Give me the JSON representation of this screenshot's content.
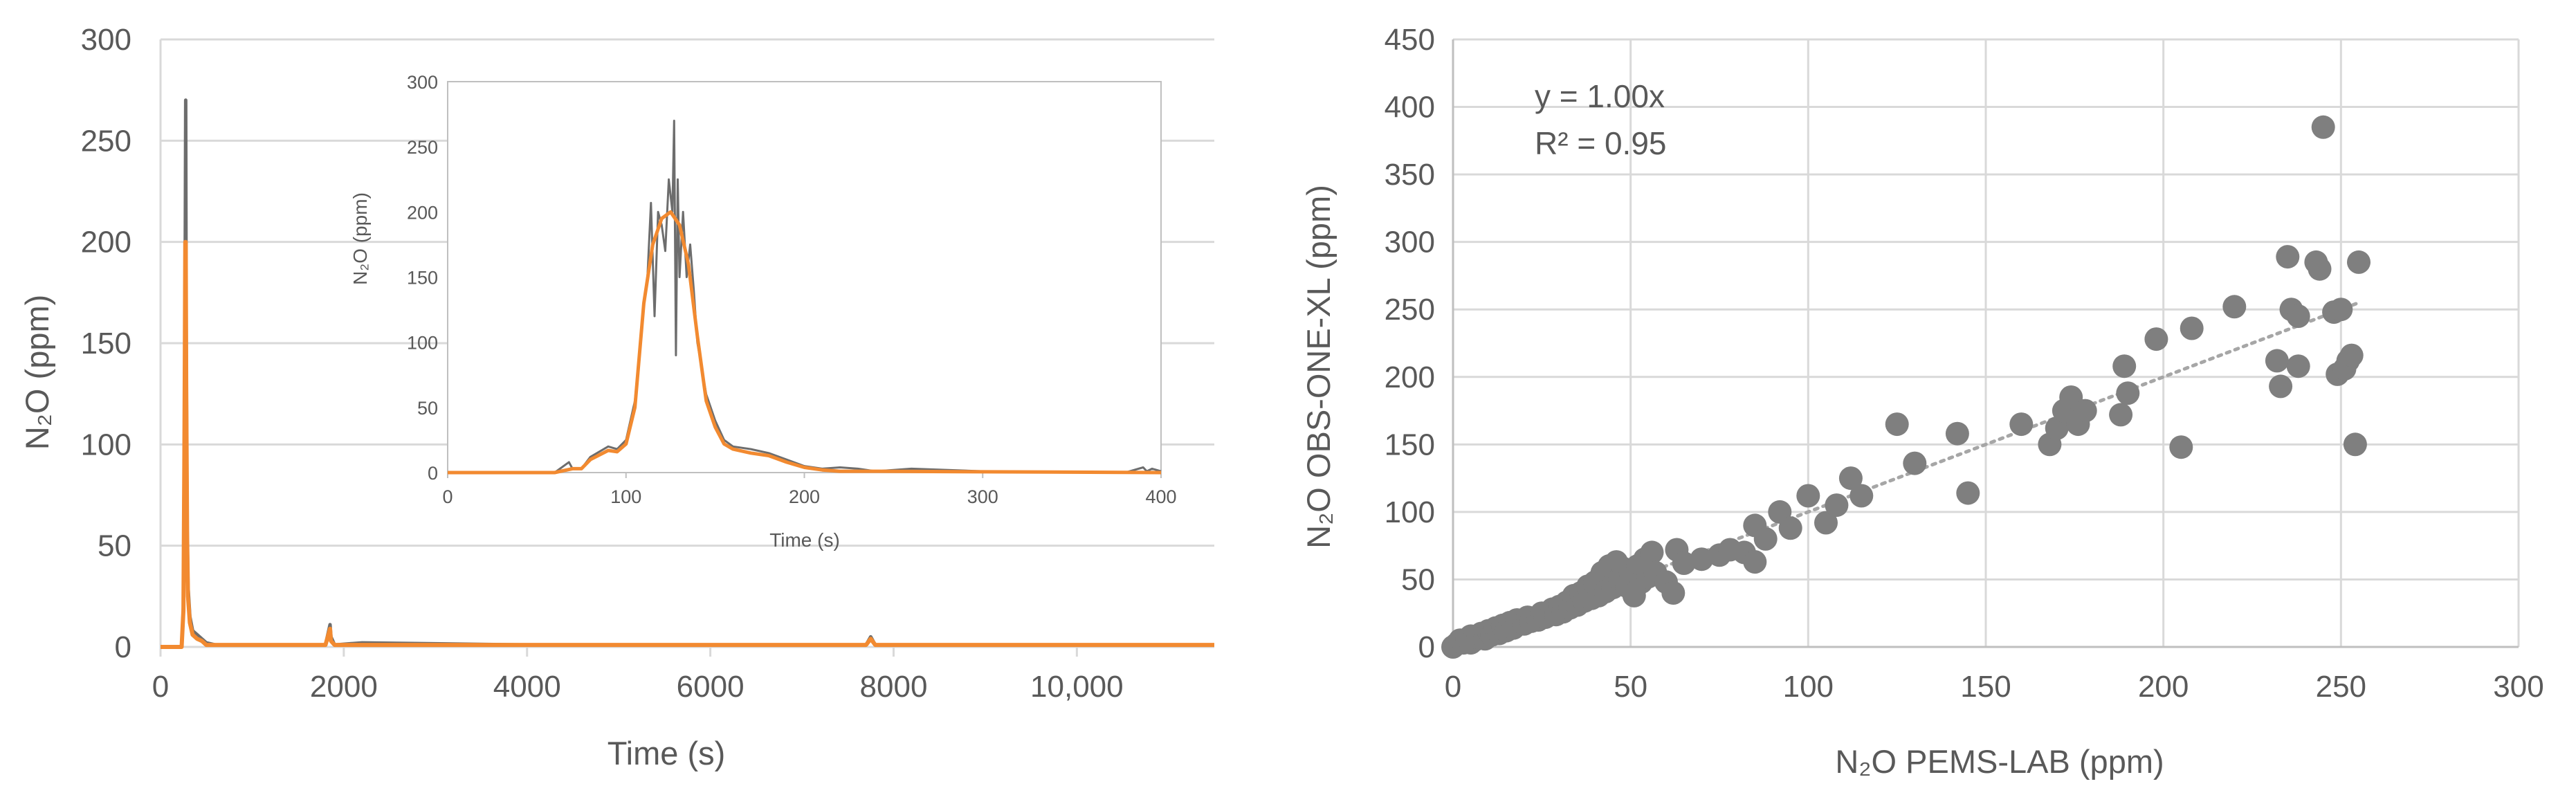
{
  "chart_data": [
    {
      "type": "line",
      "xlabel": "Time (s)",
      "ylabel": "N₂O (ppm)",
      "xlim": [
        0,
        11500
      ],
      "ylim": [
        0,
        300
      ],
      "xticks": [
        0,
        2000,
        4000,
        6000,
        8000,
        10000
      ],
      "xtick_labels": [
        "0",
        "2000",
        "4000",
        "6000",
        "8000",
        "10,000"
      ],
      "yticks": [
        0,
        50,
        100,
        150,
        200,
        250,
        300
      ],
      "grid": "horizontal",
      "colors": {
        "grey": "#6d6d6d",
        "orange": "#f28a30",
        "grid": "#d9d9d9"
      },
      "series": [
        {
          "x": [
            0,
            230,
            250,
            260,
            265,
            270,
            275,
            280,
            290,
            300,
            320,
            350,
            400,
            450,
            500,
            600,
            1000,
            1800,
            1850,
            1860,
            1900,
            2200,
            4000,
            6000,
            7700,
            7750,
            7800,
            10000,
            11500
          ],
          "y": [
            0,
            0,
            20,
            100,
            150,
            205,
            270,
            150,
            60,
            30,
            15,
            8,
            6,
            4,
            2,
            1,
            1,
            1,
            11,
            5,
            1,
            2,
            1,
            1,
            1,
            5,
            1,
            1,
            1
          ]
        },
        {
          "x": [
            0,
            230,
            250,
            260,
            265,
            270,
            275,
            280,
            290,
            300,
            320,
            350,
            400,
            450,
            500,
            600,
            1000,
            1800,
            1850,
            1860,
            1900,
            2200,
            4000,
            6000,
            7700,
            7750,
            7800,
            10000,
            11500
          ],
          "y": [
            0,
            0,
            18,
            90,
            140,
            200,
            200,
            130,
            55,
            25,
            12,
            6,
            4,
            3,
            1,
            1,
            1,
            1,
            9,
            3,
            1,
            1,
            1,
            1,
            1,
            4,
            1,
            1,
            1
          ]
        }
      ]
    },
    {
      "type": "line",
      "xlabel": "Time (s)",
      "ylabel": "N₂O (ppm)",
      "xlim": [
        0,
        400
      ],
      "ylim": [
        0,
        300
      ],
      "xticks": [
        0,
        100,
        200,
        300,
        400
      ],
      "yticks": [
        0,
        50,
        100,
        150,
        200,
        250,
        300
      ],
      "series": [
        {
          "x": [
            0,
            60,
            68,
            70,
            75,
            80,
            90,
            95,
            100,
            105,
            108,
            110,
            112,
            114,
            116,
            118,
            120,
            122,
            124,
            126,
            127,
            128,
            129,
            130,
            132,
            134,
            136,
            138,
            140,
            145,
            150,
            155,
            160,
            170,
            180,
            190,
            200,
            210,
            220,
            230,
            240,
            250,
            260,
            300,
            380,
            390,
            392,
            395,
            400
          ],
          "y": [
            0,
            0,
            8,
            3,
            3,
            12,
            20,
            18,
            25,
            55,
            100,
            130,
            150,
            207,
            120,
            200,
            190,
            170,
            225,
            200,
            270,
            90,
            225,
            150,
            200,
            150,
            175,
            140,
            100,
            60,
            40,
            25,
            20,
            18,
            15,
            10,
            5,
            3,
            4,
            3,
            1,
            2,
            3,
            1,
            0,
            4,
            1,
            3,
            1
          ]
        },
        {
          "x": [
            0,
            60,
            70,
            75,
            80,
            90,
            95,
            100,
            105,
            110,
            115,
            120,
            125,
            130,
            135,
            140,
            145,
            150,
            155,
            160,
            170,
            180,
            190,
            200,
            210,
            220,
            240,
            400
          ],
          "y": [
            0,
            0,
            3,
            3,
            10,
            17,
            16,
            22,
            50,
            130,
            175,
            195,
            200,
            190,
            160,
            105,
            55,
            35,
            22,
            18,
            15,
            13,
            8,
            4,
            2,
            1,
            1,
            0
          ]
        }
      ]
    },
    {
      "type": "scatter",
      "xlabel": "N₂O PEMS-LAB (ppm)",
      "ylabel": "N₂O OBS-ONE-XL (ppm)",
      "xlim": [
        0,
        300
      ],
      "ylim": [
        0,
        450
      ],
      "xticks": [
        0,
        50,
        100,
        150,
        200,
        250,
        300
      ],
      "yticks": [
        0,
        50,
        100,
        150,
        200,
        250,
        300,
        350,
        400,
        450
      ],
      "grid": "both",
      "annotation": [
        "y = 1.00x",
        "R² = 0.95"
      ],
      "trendline": {
        "slope": 1.0,
        "x_range": [
          0,
          255
        ]
      },
      "colors": {
        "points": "#7f7f7f",
        "trend": "#a6a6a6",
        "grid": "#d9d9d9"
      },
      "points": [
        [
          0,
          0
        ],
        [
          1,
          2
        ],
        [
          2,
          5
        ],
        [
          3,
          3
        ],
        [
          4,
          6
        ],
        [
          5,
          8
        ],
        [
          5,
          3
        ],
        [
          6,
          5
        ],
        [
          7,
          7
        ],
        [
          8,
          10
        ],
        [
          9,
          6
        ],
        [
          10,
          12
        ],
        [
          11,
          9
        ],
        [
          12,
          14
        ],
        [
          13,
          10
        ],
        [
          14,
          16
        ],
        [
          15,
          12
        ],
        [
          16,
          18
        ],
        [
          17,
          14
        ],
        [
          18,
          20
        ],
        [
          20,
          17
        ],
        [
          21,
          22
        ],
        [
          22,
          19
        ],
        [
          24,
          20
        ],
        [
          25,
          25
        ],
        [
          26,
          22
        ],
        [
          28,
          28
        ],
        [
          29,
          24
        ],
        [
          30,
          30
        ],
        [
          31,
          26
        ],
        [
          32,
          33
        ],
        [
          33,
          29
        ],
        [
          34,
          38
        ],
        [
          35,
          31
        ],
        [
          36,
          40
        ],
        [
          37,
          34
        ],
        [
          38,
          45
        ],
        [
          39,
          36
        ],
        [
          40,
          48
        ],
        [
          41,
          38
        ],
        [
          42,
          55
        ],
        [
          43,
          41
        ],
        [
          44,
          60
        ],
        [
          45,
          44
        ],
        [
          46,
          63
        ],
        [
          47,
          50
        ],
        [
          48,
          58
        ],
        [
          49,
          45
        ],
        [
          50,
          55
        ],
        [
          51,
          38
        ],
        [
          52,
          60
        ],
        [
          53,
          48
        ],
        [
          54,
          65
        ],
        [
          55,
          52
        ],
        [
          56,
          70
        ],
        [
          57,
          55
        ],
        [
          60,
          48
        ],
        [
          62,
          40
        ],
        [
          63,
          72
        ],
        [
          65,
          62
        ],
        [
          70,
          65
        ],
        [
          75,
          68
        ],
        [
          78,
          72
        ],
        [
          82,
          70
        ],
        [
          85,
          63
        ],
        [
          85,
          90
        ],
        [
          88,
          80
        ],
        [
          92,
          100
        ],
        [
          95,
          88
        ],
        [
          100,
          112
        ],
        [
          105,
          92
        ],
        [
          108,
          105
        ],
        [
          112,
          125
        ],
        [
          115,
          112
        ],
        [
          125,
          165
        ],
        [
          130,
          136
        ],
        [
          142,
          158
        ],
        [
          145,
          114
        ],
        [
          160,
          165
        ],
        [
          168,
          150
        ],
        [
          170,
          162
        ],
        [
          172,
          175
        ],
        [
          174,
          185
        ],
        [
          176,
          165
        ],
        [
          178,
          175
        ],
        [
          188,
          172
        ],
        [
          189,
          208
        ],
        [
          190,
          188
        ],
        [
          198,
          228
        ],
        [
          205,
          148
        ],
        [
          208,
          236
        ],
        [
          220,
          252
        ],
        [
          232,
          212
        ],
        [
          233,
          193
        ],
        [
          235,
          289
        ],
        [
          236,
          250
        ],
        [
          238,
          245
        ],
        [
          238,
          208
        ],
        [
          243,
          285
        ],
        [
          244,
          280
        ],
        [
          245,
          385
        ],
        [
          248,
          248
        ],
        [
          249,
          202
        ],
        [
          250,
          250
        ],
        [
          251,
          206
        ],
        [
          252,
          212
        ],
        [
          253,
          216
        ],
        [
          254,
          150
        ],
        [
          255,
          285
        ]
      ]
    }
  ]
}
